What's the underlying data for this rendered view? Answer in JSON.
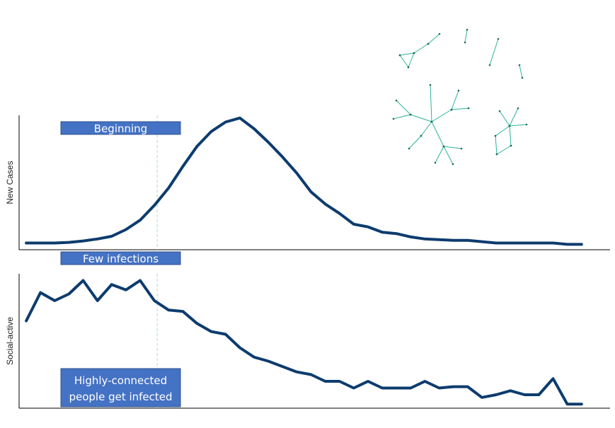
{
  "colors": {
    "line": "#0d3c6e",
    "box": "#4472c4",
    "box_border": "#2f528f",
    "network": "#2bb39a",
    "marker": "#a8dccf",
    "axis": "#000000"
  },
  "chart_data": [
    {
      "type": "line",
      "ylabel": "New Cases",
      "xlabel": "",
      "grid": false,
      "legend": "none",
      "x": [
        0,
        1,
        2,
        3,
        4,
        5,
        6,
        7,
        8,
        9,
        10,
        11,
        12,
        13,
        14,
        15,
        16,
        17,
        18,
        19,
        20,
        21,
        22,
        23,
        24,
        25,
        26,
        27,
        28,
        29,
        30,
        31,
        32,
        33,
        34,
        35,
        36,
        37,
        38,
        39
      ],
      "values": [
        0.05,
        0.05,
        0.05,
        0.055,
        0.065,
        0.08,
        0.1,
        0.15,
        0.22,
        0.33,
        0.46,
        0.62,
        0.77,
        0.88,
        0.95,
        0.98,
        0.9,
        0.8,
        0.69,
        0.57,
        0.43,
        0.34,
        0.27,
        0.19,
        0.17,
        0.13,
        0.12,
        0.095,
        0.08,
        0.075,
        0.07,
        0.07,
        0.06,
        0.05,
        0.05,
        0.05,
        0.05,
        0.05,
        0.04,
        0.04
      ],
      "ylim": [
        0,
        1
      ],
      "xlim": [
        -0.5,
        41
      ],
      "marker_x": 9.2
    },
    {
      "type": "line",
      "ylabel": "Social-active",
      "xlabel": "",
      "grid": false,
      "legend": "none",
      "x": [
        0,
        1,
        2,
        3,
        4,
        5,
        6,
        7,
        8,
        9,
        10,
        11,
        12,
        13,
        14,
        15,
        16,
        17,
        18,
        19,
        20,
        21,
        22,
        23,
        24,
        25,
        26,
        27,
        28,
        29,
        30,
        31,
        32,
        33,
        34,
        35,
        36,
        37,
        38,
        39
      ],
      "values": [
        0.65,
        0.86,
        0.8,
        0.85,
        0.95,
        0.8,
        0.92,
        0.88,
        0.95,
        0.8,
        0.73,
        0.72,
        0.63,
        0.57,
        0.55,
        0.45,
        0.38,
        0.35,
        0.31,
        0.27,
        0.25,
        0.2,
        0.2,
        0.15,
        0.2,
        0.15,
        0.15,
        0.15,
        0.2,
        0.15,
        0.16,
        0.16,
        0.08,
        0.1,
        0.13,
        0.1,
        0.1,
        0.22,
        0.03,
        0.03
      ],
      "ylim": [
        0,
        1
      ],
      "xlim": [
        -0.5,
        41
      ],
      "marker_x": 9.2
    }
  ],
  "annotations": {
    "beginning": "Beginning",
    "few_infections": "Few infections",
    "highly_connected_line1": "Highly-connected",
    "highly_connected_line2": "people get infected"
  },
  "network_graph": {
    "description_icon": "contact-network-icon",
    "clusters": 6
  }
}
